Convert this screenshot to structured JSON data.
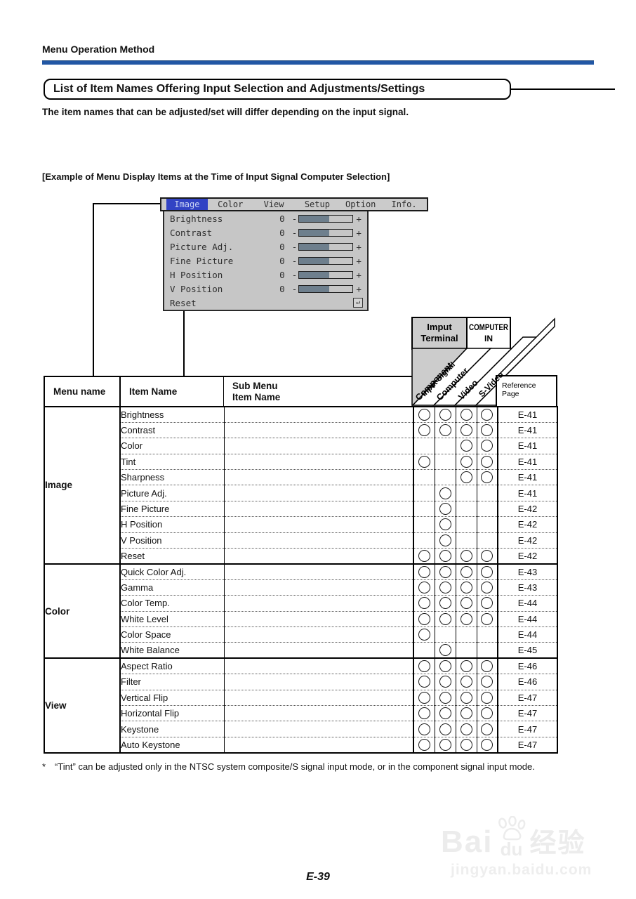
{
  "colors": {
    "rule_blue": "#2257a4",
    "tab_blue": "#3243c4",
    "menu_gray": "#c6c6c6",
    "slider_fill": "#6e7f8d"
  },
  "page": {
    "section_header": "Menu Operation Method",
    "title": "List of Item Names Offering Input Selection and Adjustments/Settings",
    "intro": "The item names that can be adjusted/set will differ depending on the input signal.",
    "example_caption": "[Example of Menu Display Items at the Time of Input Signal Computer Selection]",
    "footnote_marker": "*",
    "footnote_text": "“Tint” can be adjusted only in the NTSC system composite/S signal input mode, or in the component signal input mode.",
    "page_number": "E-39"
  },
  "menu": {
    "tabs": [
      {
        "label": "Image",
        "selected": true
      },
      {
        "label": "Color",
        "selected": false
      },
      {
        "label": "View",
        "selected": false
      },
      {
        "label": "Setup",
        "selected": false
      },
      {
        "label": "Option",
        "selected": false
      },
      {
        "label": "Info.",
        "selected": false
      }
    ],
    "slider_rows": [
      {
        "label": "Brightness",
        "value": "0"
      },
      {
        "label": "Contrast",
        "value": "0"
      },
      {
        "label": "Picture Adj.",
        "value": "0"
      },
      {
        "label": "Fine Picture",
        "value": "0"
      },
      {
        "label": "H Position",
        "value": "0"
      },
      {
        "label": "V Position",
        "value": "0"
      }
    ],
    "reset_label": "Reset",
    "minus": "-",
    "plus": "+",
    "enter_icon": "↵",
    "slider_fill_percent": 56
  },
  "table": {
    "corner": {
      "input_terminal_line1": "Imput",
      "input_terminal_line2": "Terminal",
      "computer_in_line1": "COMPUTER",
      "computer_in_line2": "IN",
      "input_signal_label": "Input Signal",
      "reference_line1": "Reference",
      "reference_line2": "Page"
    },
    "signal_columns": [
      "Component",
      "Computer",
      "Video",
      "S-Video"
    ],
    "headers": {
      "menu_name": "Menu name",
      "item_name": "Item Name",
      "sub_menu_line1": "Sub Menu",
      "sub_menu_line2": "Item Name"
    },
    "sections": [
      {
        "menu": "Image",
        "rows": [
          {
            "item": "Brightness",
            "signals": [
              1,
              1,
              1,
              1
            ],
            "ref": "E-41"
          },
          {
            "item": "Contrast",
            "signals": [
              1,
              1,
              1,
              1
            ],
            "ref": "E-41"
          },
          {
            "item": "Color",
            "signals": [
              0,
              0,
              1,
              1
            ],
            "ref": "E-41"
          },
          {
            "item": "Tint",
            "signals": [
              1,
              0,
              1,
              1
            ],
            "ref": "E-41"
          },
          {
            "item": "Sharpness",
            "signals": [
              0,
              0,
              1,
              1
            ],
            "ref": "E-41"
          },
          {
            "item": "Picture Adj.",
            "signals": [
              0,
              1,
              0,
              0
            ],
            "ref": "E-41"
          },
          {
            "item": "Fine Picture",
            "signals": [
              0,
              1,
              0,
              0
            ],
            "ref": "E-42"
          },
          {
            "item": "H Position",
            "signals": [
              0,
              1,
              0,
              0
            ],
            "ref": "E-42"
          },
          {
            "item": "V Position",
            "signals": [
              0,
              1,
              0,
              0
            ],
            "ref": "E-42"
          },
          {
            "item": "Reset",
            "signals": [
              1,
              1,
              1,
              1
            ],
            "ref": "E-42"
          }
        ]
      },
      {
        "menu": "Color",
        "rows": [
          {
            "item": "Quick Color Adj.",
            "signals": [
              1,
              1,
              1,
              1
            ],
            "ref": "E-43"
          },
          {
            "item": "Gamma",
            "signals": [
              1,
              1,
              1,
              1
            ],
            "ref": "E-43"
          },
          {
            "item": "Color Temp.",
            "signals": [
              1,
              1,
              1,
              1
            ],
            "ref": "E-44"
          },
          {
            "item": "White Level",
            "signals": [
              1,
              1,
              1,
              1
            ],
            "ref": "E-44"
          },
          {
            "item": "Color Space",
            "signals": [
              1,
              0,
              0,
              0
            ],
            "ref": "E-44"
          },
          {
            "item": "White Balance",
            "signals": [
              0,
              1,
              0,
              0
            ],
            "ref": "E-45"
          }
        ]
      },
      {
        "menu": "View",
        "rows": [
          {
            "item": "Aspect Ratio",
            "signals": [
              1,
              1,
              1,
              1
            ],
            "ref": "E-46"
          },
          {
            "item": "Filter",
            "signals": [
              1,
              1,
              1,
              1
            ],
            "ref": "E-46"
          },
          {
            "item": "Vertical Flip",
            "signals": [
              1,
              1,
              1,
              1
            ],
            "ref": "E-47"
          },
          {
            "item": "Horizontal Flip",
            "signals": [
              1,
              1,
              1,
              1
            ],
            "ref": "E-47"
          },
          {
            "item": "Keystone",
            "signals": [
              1,
              1,
              1,
              1
            ],
            "ref": "E-47"
          },
          {
            "item": "Auto Keystone",
            "signals": [
              1,
              1,
              1,
              1
            ],
            "ref": "E-47"
          }
        ]
      }
    ]
  },
  "watermark": {
    "brand_part1": "Bai",
    "brand_part2": "du",
    "brand_cn": "经验",
    "url": "jingyan.baidu.com"
  }
}
